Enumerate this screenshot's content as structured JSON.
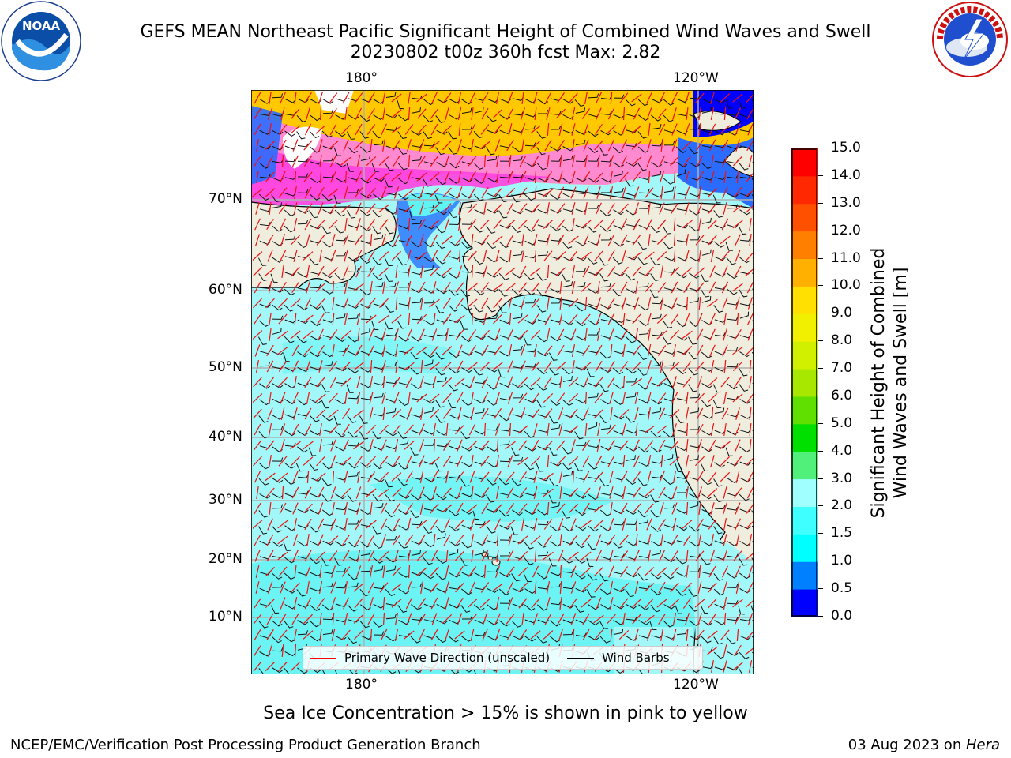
{
  "header": {
    "title_line1": "GEFS MEAN Northeast Pacific Significant Height of Combined Wind Waves and Swell",
    "title_line2": "20230802 t00z 360h fcst   Max: 2.82"
  },
  "logos": {
    "left": "NOAA",
    "right": "NATIONAL WEATHER SERVICE"
  },
  "map": {
    "lon_labels_top": [
      "180°",
      "120°W"
    ],
    "lon_labels_bottom": [
      "180°",
      "120°W"
    ],
    "lat_labels": [
      "70°N",
      "60°N",
      "50°N",
      "40°N",
      "30°N",
      "20°N",
      "10°N"
    ],
    "legend": {
      "wave_direction": "Primary Wave Direction (unscaled)",
      "wind_barbs": "Wind Barbs"
    }
  },
  "colorbar": {
    "label_line1": "Significant Height of Combined",
    "label_line2": "Wind Waves and Swell [m]",
    "ticks": [
      "0.0",
      "0.5",
      "1.0",
      "1.5",
      "2.0",
      "3.0",
      "4.0",
      "5.0",
      "6.0",
      "7.0",
      "8.0",
      "9.0",
      "10.0",
      "11.0",
      "12.0",
      "13.0",
      "14.0",
      "15.0"
    ],
    "colors": [
      "#0000ff",
      "#0080ff",
      "#00ffff",
      "#40ffff",
      "#a0ffff",
      "#50f07a",
      "#00e000",
      "#60e000",
      "#a8e800",
      "#d0f000",
      "#f0f000",
      "#ffe000",
      "#ffb000",
      "#ff8000",
      "#ff5000",
      "#ff2800",
      "#ff0000"
    ]
  },
  "annotation": "Sea Ice Concentration > 15% is shown in pink to yellow",
  "footer": {
    "left": "NCEP/EMC/Verification Post Processing Product Generation Branch",
    "right_prefix": "03 Aug 2023 on ",
    "right_machine": "Hera"
  }
}
